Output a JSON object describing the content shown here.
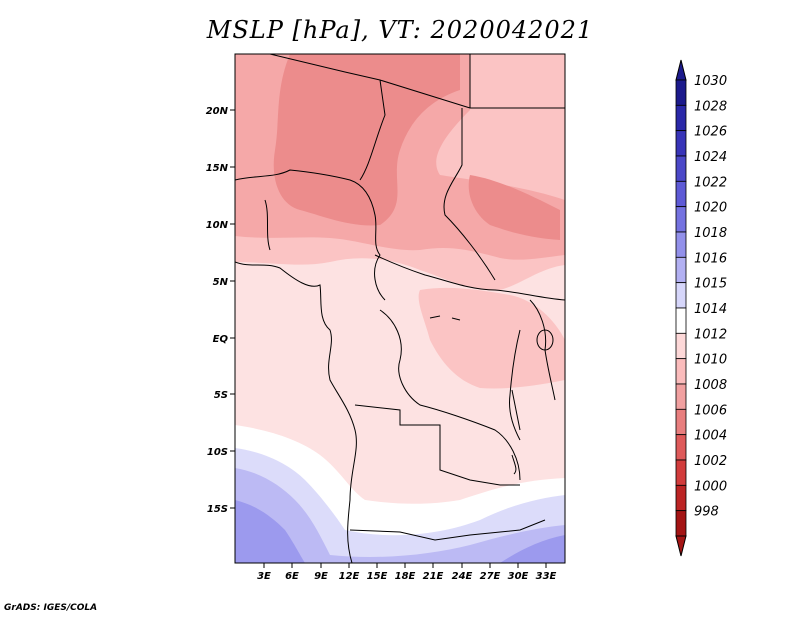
{
  "title": "MSLP [hPa], VT: 2020042021",
  "credit": "GrADS: IGES/COLA",
  "lat_labels": [
    "20N",
    "15N",
    "10N",
    "5N",
    "EQ",
    "5S",
    "10S",
    "15S"
  ],
  "lon_labels": [
    "3E",
    "6E",
    "9E",
    "12E",
    "15E",
    "18E",
    "21E",
    "24E",
    "27E",
    "30E",
    "33E"
  ],
  "colorbar": {
    "levels": [
      "1030",
      "1028",
      "1026",
      "1024",
      "1022",
      "1020",
      "1018",
      "1016",
      "1015",
      "1014",
      "1012",
      "1010",
      "1008",
      "1006",
      "1004",
      "1002",
      "1000",
      "998"
    ],
    "colors": [
      "#1c1a8c",
      "#2a28a8",
      "#3834b8",
      "#4b48c8",
      "#5e5ad6",
      "#7472e0",
      "#9290ea",
      "#b2b0f2",
      "#d6d6fa",
      "#ffffff",
      "#fdd8d8",
      "#fbbcbc",
      "#f1a0a0",
      "#e87e7e",
      "#de5a5a",
      "#d23c3c",
      "#bc2424",
      "#a41414"
    ]
  }
}
